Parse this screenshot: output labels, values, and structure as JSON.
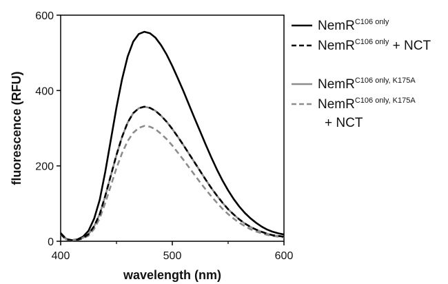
{
  "chart_data": {
    "type": "line",
    "xlabel": "wavelength (nm)",
    "ylabel": "fluorescence (RFU)",
    "xlim": [
      400,
      600
    ],
    "ylim": [
      0,
      600
    ],
    "x_ticks": [
      400,
      500,
      600
    ],
    "y_ticks": [
      0,
      200,
      400,
      600
    ],
    "grid": false,
    "legend_position": "right",
    "x": [
      400,
      405,
      410,
      415,
      420,
      425,
      430,
      435,
      440,
      445,
      450,
      455,
      460,
      465,
      470,
      475,
      480,
      485,
      490,
      495,
      500,
      505,
      510,
      515,
      520,
      525,
      530,
      535,
      540,
      545,
      550,
      555,
      560,
      565,
      570,
      575,
      580,
      585,
      590,
      595,
      600
    ],
    "series": [
      {
        "name": "NemR",
        "sup": "C106 only",
        "suffix": "",
        "color": "#000000",
        "dash": "solid",
        "values": [
          22,
          6,
          3,
          5,
          12,
          28,
          60,
          110,
          185,
          270,
          355,
          430,
          490,
          530,
          550,
          556,
          552,
          540,
          520,
          495,
          465,
          432,
          398,
          362,
          326,
          291,
          256,
          222,
          190,
          161,
          135,
          112,
          92,
          75,
          61,
          49,
          39,
          31,
          25,
          21,
          18
        ]
      },
      {
        "name": "NemR",
        "sup": "C106 only",
        "suffix": " + NCT",
        "color": "#000000",
        "dash": "dashed",
        "values": [
          20,
          5,
          3,
          4,
          9,
          19,
          40,
          72,
          121,
          175,
          229,
          277,
          315,
          340,
          353,
          357,
          354,
          346,
          333,
          317,
          298,
          277,
          255,
          232,
          209,
          186,
          163,
          141,
          121,
          102,
          85,
          71,
          58,
          47,
          38,
          31,
          25,
          20,
          16,
          14,
          12
        ]
      },
      {
        "name": "NemR",
        "sup": "C106 only, K175A",
        "suffix": "",
        "color": "#8c8c8c",
        "dash": "solid",
        "values": [
          20,
          5,
          3,
          4,
          9,
          19,
          40,
          72,
          121,
          175,
          229,
          277,
          315,
          340,
          353,
          357,
          354,
          346,
          333,
          317,
          298,
          277,
          255,
          232,
          209,
          186,
          163,
          141,
          121,
          102,
          85,
          71,
          58,
          47,
          38,
          31,
          25,
          20,
          16,
          14,
          12
        ]
      },
      {
        "name": "NemR",
        "sup": "C106 only, K175A",
        "suffix": "+ NCT",
        "color": "#8c8c8c",
        "dash": "dashed",
        "values": [
          18,
          4,
          2,
          3,
          7,
          15,
          33,
          61,
          102,
          148,
          194,
          234,
          266,
          288,
          301,
          306,
          304,
          297,
          285,
          271,
          254,
          235,
          216,
          196,
          176,
          156,
          137,
          119,
          102,
          86,
          72,
          60,
          49,
          40,
          32,
          26,
          21,
          17,
          14,
          12,
          10
        ]
      }
    ]
  }
}
